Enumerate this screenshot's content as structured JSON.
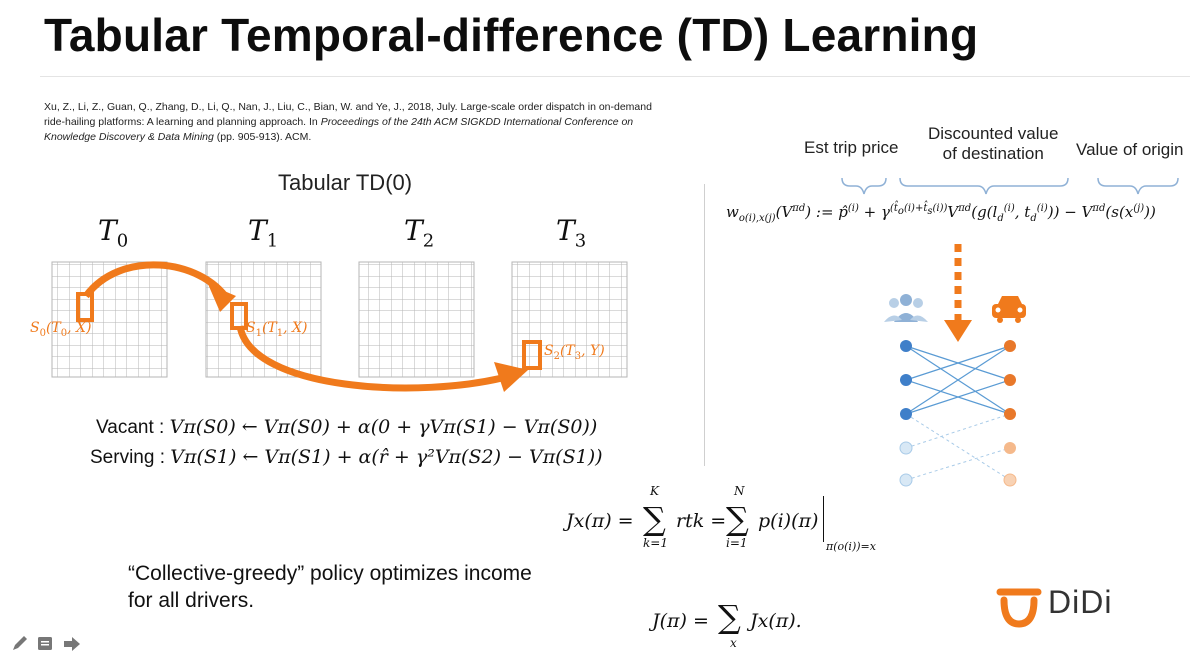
{
  "slide": {
    "title": "Tabular Temporal-difference (TD) Learning",
    "citation": {
      "plain": "Xu, Z., Li, Z., Guan, Q., Zhang, D., Li, Q., Nan, J., Liu, C., Bian, W. and Ye, J., 2018, July. Large-scale order dispatch in on-demand ride-hailing platforms: A learning and planning approach. In ",
      "italic": "Proceedings of the 24th ACM SIGKDD International Conference on Knowledge Discovery & Data Mining",
      "tail": " (pp. 905-913). ACM."
    },
    "td_subtitle": "Tabular TD(0)"
  },
  "grids": [
    {
      "label": "T",
      "sub": "0"
    },
    {
      "label": "T",
      "sub": "1"
    },
    {
      "label": "T",
      "sub": "2"
    },
    {
      "label": "T",
      "sub": "3"
    }
  ],
  "states": [
    {
      "s": "S",
      "sub": "0",
      "args": "(T",
      "targ": "0",
      "tail": ", X)"
    },
    {
      "s": "S",
      "sub": "1",
      "args": "(T",
      "targ": "1",
      "tail": ", X)"
    },
    {
      "s": "S",
      "sub": "2",
      "args": "(T",
      "targ": "3",
      "tail": ", Y)"
    }
  ],
  "equations": {
    "vacant_label": "Vacant :",
    "vacant_eq": "Vπ(S0) ← Vπ(S0) + α(0 + γVπ(S1) − Vπ(S0))",
    "serving_label": "Serving :",
    "serving_eq": "Vπ(S1) ← Vπ(S1) + α(r̂ + γ²Vπ(S2) − Vπ(S1))"
  },
  "policy_text": "“Collective-greedy” policy optimizes income for all drivers.",
  "brackets": {
    "est_trip": "Est trip price",
    "discounted_line1": "Discounted value",
    "discounted_line2": "of destination",
    "origin": "Value of origin"
  },
  "formulas": {
    "w_lhs": "w",
    "jx_lhs": "Jx(π) =",
    "jx_sum1_top": "K",
    "jx_sum1_bottom": "k=1",
    "jx_term1": "rtk =",
    "jx_sum2_top": "N",
    "jx_sum2_bottom": "i=1",
    "jx_term2": "p(i)(π)",
    "jx_cond": "π(o(i))=x",
    "j_total": "J(π) = ",
    "j_sum_bottom": "x",
    "j_term": "Jx(π)."
  },
  "logo": {
    "text": "DiDi"
  },
  "colors": {
    "orange": "#f07a1c",
    "blue_node": "#3f7fc9",
    "light_blue_node": "#a9cbe8",
    "orange_node": "#e8782a",
    "light_orange_node": "#f5b98b",
    "passenger_icon": "#8fb1d6",
    "grid_line": "#b5b5b5"
  },
  "icons": [
    "pen-icon",
    "notes-icon",
    "arrow-right-icon",
    "passengers-icon",
    "car-icon",
    "didi-logo-icon"
  ]
}
